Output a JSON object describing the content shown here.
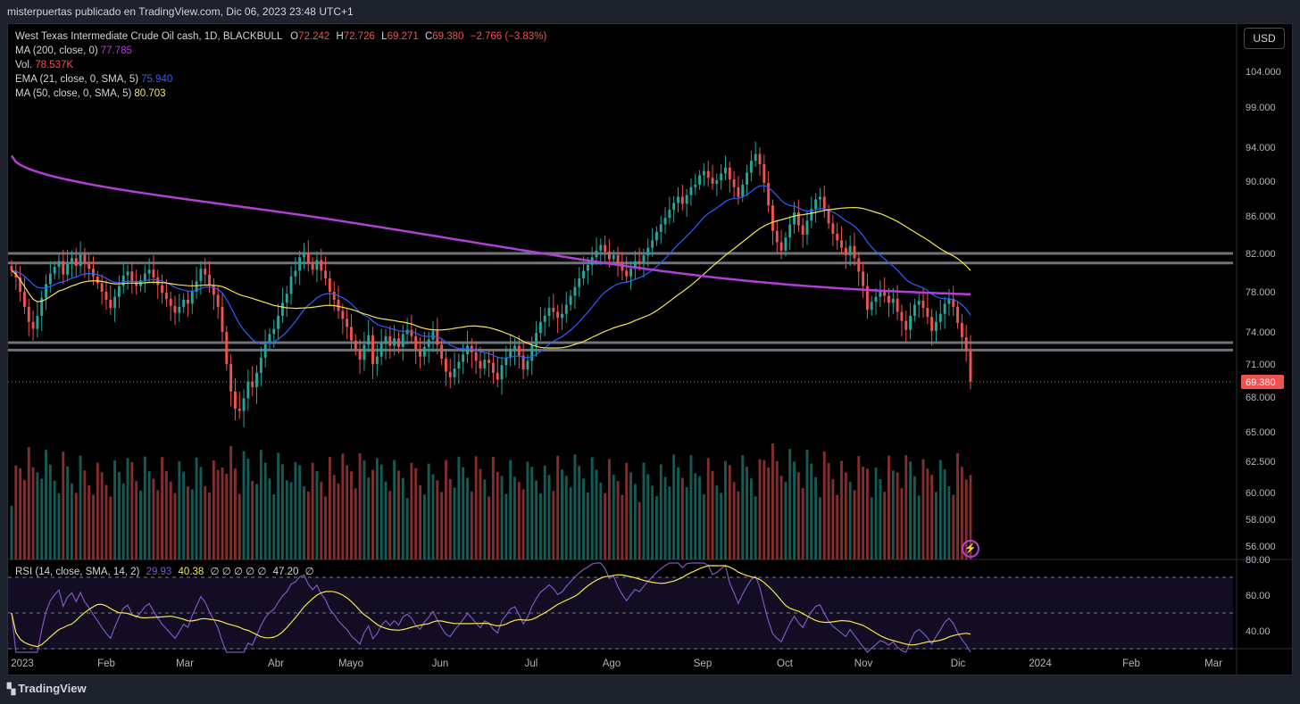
{
  "header": {
    "publisher_line": "misterpuertas publicado en TradingView.com, Dic 06, 2023 23:48 UTC+1"
  },
  "legend": {
    "symbol": "West Texas Intermediate Crude Oil cash, 1D, BLACKBULL",
    "o_label": "O",
    "o_value": "72.242",
    "h_label": "H",
    "h_value": "72.726",
    "l_label": "L",
    "l_value": "69.271",
    "c_label": "C",
    "c_value": "69.380",
    "change": "−2.766 (−3.83%)",
    "ma200_label": "MA (200, close, 0)",
    "ma200_value": "77.785",
    "vol_label": "Vol.",
    "vol_value": "78.537K",
    "ema21_label": "EMA (21, close, 0, SMA, 5)",
    "ema21_value": "75.940",
    "ma50_label": "MA (50, close, 0, SMA, 5)",
    "ma50_value": "80.703"
  },
  "rsi_legend": {
    "label": "RSI (14, close, SMA, 14, 2)",
    "value1": "29.93",
    "value2": "40.38",
    "nulls": "∅ ∅ ∅ ∅ ∅",
    "value3": "47.20",
    "null_end": "∅"
  },
  "currency_button": "USD",
  "price_axis": [
    "104.000",
    "99.000",
    "94.000",
    "90.000",
    "86.000",
    "82.000",
    "78.000",
    "74.000",
    "71.000",
    "68.000",
    "65.000",
    "62.500",
    "60.000",
    "58.000",
    "56.000"
  ],
  "last_price_tag": "69.380",
  "rsi_axis": [
    "80.00",
    "60.00",
    "40.00"
  ],
  "time_axis": [
    "2023",
    "Feb",
    "Mar",
    "Abr",
    "Mayo",
    "Jun",
    "Jul",
    "Ago",
    "Sep",
    "Oct",
    "Nov",
    "Dic",
    "2024",
    "Feb",
    "Mar"
  ],
  "footer": {
    "brand": "TradingView"
  },
  "colors": {
    "up": "#26a69a",
    "down": "#ef5350",
    "ma200": "#b23fd6",
    "ema21": "#2962ff",
    "ma50": "#f7e64a",
    "rsi": "#7e57c2",
    "level": "#787b86"
  },
  "chart_data": {
    "type": "candlestick",
    "title": "West Texas Intermediate Crude Oil cash, 1D, BLACKBULL",
    "ylim": [
      55,
      107
    ],
    "support_resistance_levels": [
      82.0,
      81.0,
      73.0,
      72.3
    ],
    "last_price": 69.38,
    "closes": [
      80.2,
      79.5,
      78.0,
      76.5,
      75.0,
      74.3,
      75.6,
      77.4,
      78.8,
      79.9,
      80.6,
      81.2,
      79.8,
      80.9,
      81.5,
      80.7,
      81.9,
      81.0,
      80.4,
      79.6,
      78.9,
      78.0,
      77.2,
      76.4,
      77.5,
      78.6,
      79.7,
      80.1,
      79.0,
      78.6,
      79.2,
      79.9,
      80.3,
      79.5,
      78.7,
      77.9,
      77.3,
      76.6,
      75.9,
      76.5,
      77.2,
      76.8,
      78.0,
      79.1,
      80.4,
      79.8,
      78.7,
      77.7,
      76.5,
      74.0,
      71.0,
      68.5,
      67.0,
      66.8,
      67.9,
      69.4,
      68.9,
      70.2,
      71.6,
      72.9,
      73.8,
      74.3,
      75.6,
      76.9,
      77.8,
      79.6,
      80.2,
      81.6,
      82.1,
      81.0,
      80.3,
      81.3,
      80.2,
      79.4,
      78.0,
      77.2,
      76.1,
      75.3,
      74.5,
      73.2,
      72.4,
      71.4,
      72.8,
      73.7,
      71.0,
      71.7,
      72.9,
      73.6,
      72.7,
      73.4,
      72.6,
      73.8,
      74.2,
      73.6,
      72.4,
      71.7,
      72.6,
      73.3,
      74.1,
      72.8,
      71.5,
      70.3,
      69.8,
      70.6,
      71.2,
      71.9,
      72.7,
      72.1,
      71.3,
      70.6,
      71.4,
      71.1,
      70.2,
      69.6,
      70.9,
      71.6,
      72.4,
      72.7,
      71.8,
      70.5,
      71.3,
      72.7,
      73.9,
      75.0,
      75.6,
      76.4,
      76.0,
      75.4,
      75.8,
      76.7,
      77.6,
      78.5,
      79.4,
      80.2,
      80.8,
      81.6,
      82.3,
      82.9,
      82.2,
      81.4,
      81.8,
      80.9,
      80.2,
      79.6,
      80.4,
      81.2,
      81.0,
      81.8,
      82.6,
      83.4,
      84.3,
      85.1,
      85.8,
      86.7,
      87.5,
      88.2,
      87.4,
      88.4,
      89.3,
      89.6,
      90.7,
      91.2,
      90.4,
      89.7,
      90.1,
      90.9,
      91.6,
      90.2,
      89.3,
      88.2,
      89.6,
      91.0,
      92.4,
      93.2,
      92.0,
      89.8,
      87.2,
      84.4,
      83.2,
      82.3,
      83.7,
      85.1,
      86.4,
      85.0,
      84.0,
      85.5,
      86.8,
      87.9,
      88.2,
      86.7,
      85.2,
      84.1,
      83.4,
      82.6,
      81.8,
      82.8,
      81.5,
      80.1,
      78.6,
      76.2,
      77.0,
      77.5,
      78.0,
      77.6,
      76.9,
      77.3,
      76.0,
      75.1,
      74.2,
      75.6,
      76.7,
      77.1,
      76.4,
      75.5,
      74.1,
      75.0,
      75.8,
      76.8,
      77.3,
      76.5,
      74.9,
      73.5,
      72.2,
      69.4
    ]
  }
}
